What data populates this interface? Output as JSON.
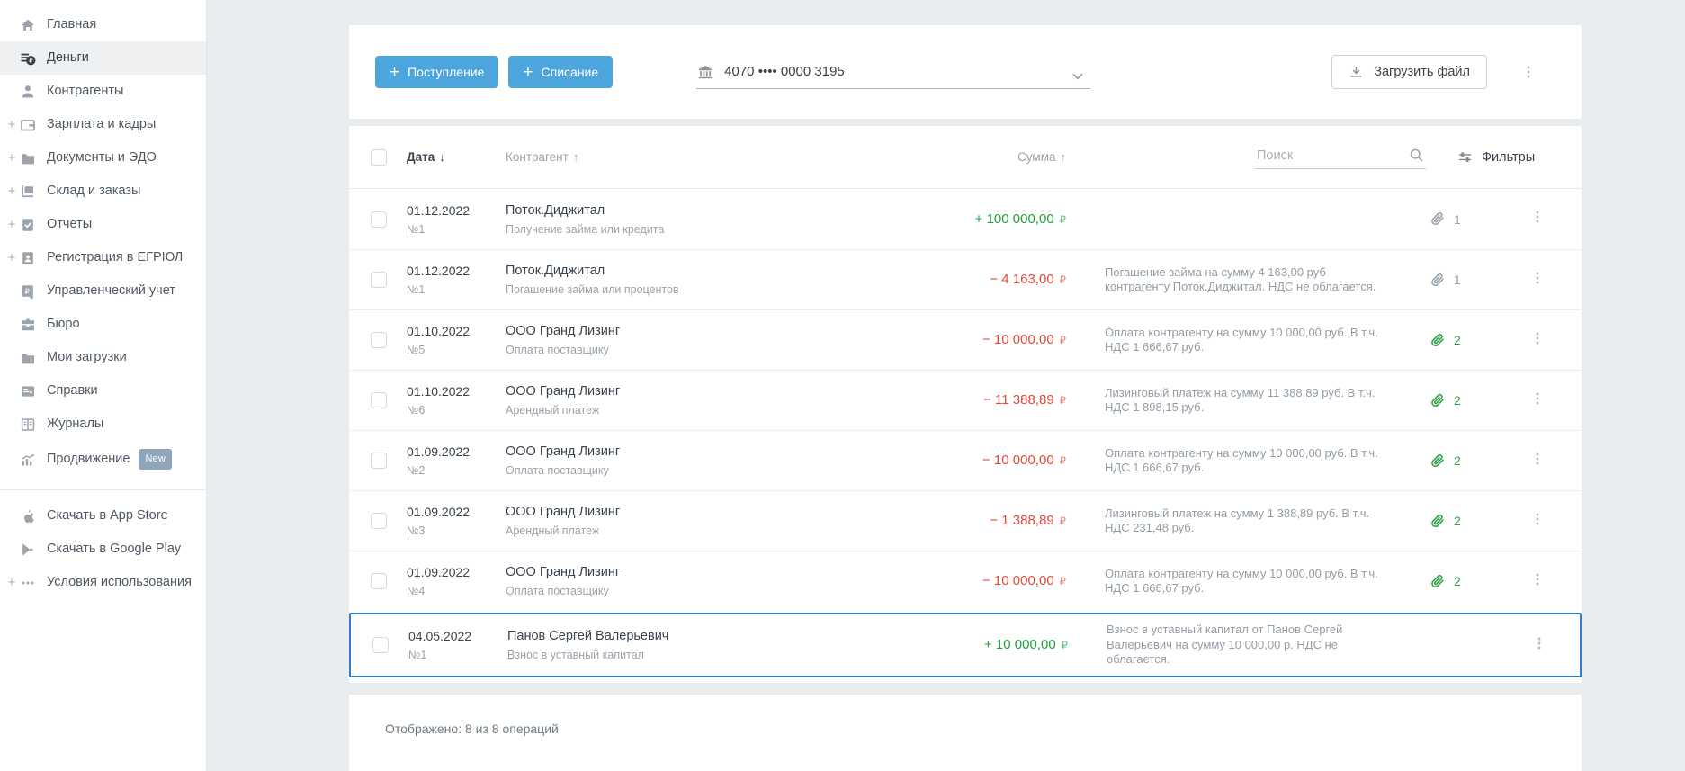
{
  "sidebar": {
    "items": [
      {
        "label": "Главная",
        "icon": "home"
      },
      {
        "label": "Деньги",
        "icon": "money",
        "active": true
      },
      {
        "label": "Контрагенты",
        "icon": "person"
      },
      {
        "label": "Зарплата и кадры",
        "icon": "wallet",
        "expandable": true
      },
      {
        "label": "Документы и ЭДО",
        "icon": "folder",
        "expandable": true
      },
      {
        "label": "Склад и заказы",
        "icon": "warehouse",
        "expandable": true
      },
      {
        "label": "Отчеты",
        "icon": "report",
        "expandable": true
      },
      {
        "label": "Регистрация в ЕГРЮЛ",
        "icon": "registration",
        "expandable": true
      },
      {
        "label": "Управленческий учет",
        "icon": "management"
      },
      {
        "label": "Бюро",
        "icon": "briefcase"
      },
      {
        "label": "Мои загрузки",
        "icon": "downloads"
      },
      {
        "label": "Справки",
        "icon": "certificate"
      },
      {
        "label": "Журналы",
        "icon": "journal"
      },
      {
        "label": "Продвижение",
        "icon": "promotion",
        "badge": "New"
      }
    ],
    "footer_items": [
      {
        "label": "Скачать в App Store",
        "icon": "apple"
      },
      {
        "label": "Скачать в Google Play",
        "icon": "google-play"
      },
      {
        "label": "Условия использования",
        "icon": "terms",
        "expandable": true
      }
    ]
  },
  "toolbar": {
    "income_button": "Поступление",
    "outcome_button": "Списание",
    "account": "4070 •••• 0000 3195",
    "upload_button": "Загрузить файл"
  },
  "table": {
    "headers": {
      "date": "Дата",
      "date_arrow": "↓",
      "counterparty": "Контрагент",
      "counterparty_arrow": "↑",
      "amount": "Сумма",
      "amount_arrow": "↑"
    },
    "search_placeholder": "Поиск",
    "filters_label": "Фильтры",
    "rows": [
      {
        "date": "01.12.2022",
        "number": "№1",
        "counterparty": "Поток.Диджитал",
        "category": "Получение займа или кредита",
        "amount": "+ 100 000,00",
        "currency": "₽",
        "direction": "income",
        "description": "",
        "attachments": 1,
        "attachment_color": "gray",
        "selected": false
      },
      {
        "date": "01.12.2022",
        "number": "№1",
        "counterparty": "Поток.Диджитал",
        "category": "Погашение займа или процентов",
        "amount": "− 4 163,00",
        "currency": "₽",
        "direction": "expense",
        "description": "Погашение займа на сумму 4 163,00 руб контрагенту Поток.Диджитал. НДС не облагается.",
        "attachments": 1,
        "attachment_color": "gray",
        "selected": false
      },
      {
        "date": "01.10.2022",
        "number": "№5",
        "counterparty": "ООО Гранд Лизинг",
        "category": "Оплата поставщику",
        "amount": "− 10 000,00",
        "currency": "₽",
        "direction": "expense",
        "description": "Оплата контрагенту на сумму 10 000,00 руб. В т.ч. НДС 1 666,67 руб.",
        "attachments": 2,
        "attachment_color": "green",
        "selected": false
      },
      {
        "date": "01.10.2022",
        "number": "№6",
        "counterparty": "ООО Гранд Лизинг",
        "category": "Арендный платеж",
        "amount": "− 11 388,89",
        "currency": "₽",
        "direction": "expense",
        "description": "Лизинговый платеж на сумму 11 388,89 руб. В т.ч. НДС 1 898,15 руб.",
        "attachments": 2,
        "attachment_color": "green",
        "selected": false
      },
      {
        "date": "01.09.2022",
        "number": "№2",
        "counterparty": "ООО Гранд Лизинг",
        "category": "Оплата поставщику",
        "amount": "− 10 000,00",
        "currency": "₽",
        "direction": "expense",
        "description": "Оплата контрагенту на сумму 10 000,00 руб. В т.ч. НДС 1 666,67 руб.",
        "attachments": 2,
        "attachment_color": "green",
        "selected": false
      },
      {
        "date": "01.09.2022",
        "number": "№3",
        "counterparty": "ООО Гранд Лизинг",
        "category": "Арендный платеж",
        "amount": "− 1 388,89",
        "currency": "₽",
        "direction": "expense",
        "description": "Лизинговый платеж на сумму 1 388,89 руб. В т.ч. НДС 231,48 руб.",
        "attachments": 2,
        "attachment_color": "green",
        "selected": false
      },
      {
        "date": "01.09.2022",
        "number": "№4",
        "counterparty": "ООО Гранд Лизинг",
        "category": "Оплата поставщику",
        "amount": "− 10 000,00",
        "currency": "₽",
        "direction": "expense",
        "description": "Оплата контрагенту на сумму 10 000,00 руб. В т.ч. НДС 1 666,67 руб.",
        "attachments": 2,
        "attachment_color": "green",
        "selected": false
      },
      {
        "date": "04.05.2022",
        "number": "№1",
        "counterparty": "Панов Сергей Валерьевич",
        "category": "Взнос в уставный капитал",
        "amount": "+ 10 000,00",
        "currency": "₽",
        "direction": "income",
        "description": "Взнос в уставный капитал от Панов Сергей Валерьевич на сумму 10 000,00 р. НДС не облагается.",
        "attachments": 0,
        "attachment_color": "none",
        "selected": true
      }
    ],
    "footer": "Отображено: 8 из 8 операций"
  },
  "colors": {
    "accent_blue": "#4da5dd",
    "income_green": "#1fa23c",
    "expense_red": "#e2483b",
    "selection_blue": "#2e7ec9",
    "attachment_green": "#33a04a",
    "page_background": "#e9edf0"
  }
}
